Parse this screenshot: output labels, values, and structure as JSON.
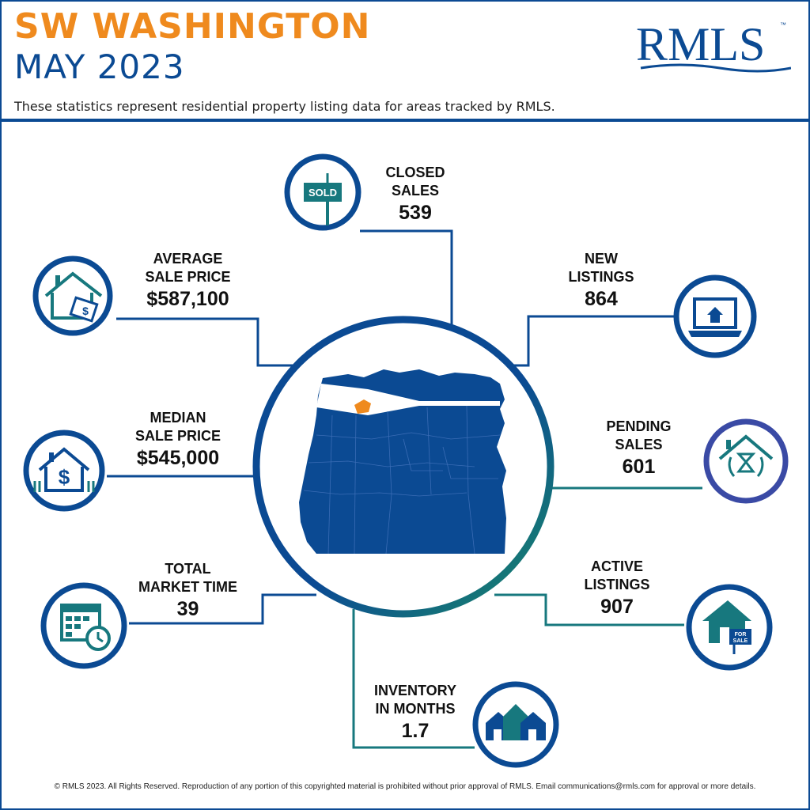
{
  "header": {
    "title_line1": "SW WASHINGTON",
    "title_line2": "MAY 2023",
    "brand": "RMLS",
    "trademark": "™",
    "subtitle": "These statistics represent residential property listing data for areas tracked by RMLS."
  },
  "colors": {
    "brand_blue": "#0b4a93",
    "accent_orange": "#ef8a1e",
    "icon_teal": "#17787e",
    "ring_green": "#1a8a6a",
    "pending_ring": "#3a4aa5"
  },
  "stats": {
    "closed_sales": {
      "label": "CLOSED\nSALES",
      "value": "539",
      "icon": "sold-sign-icon",
      "sign_text": "SOLD"
    },
    "new_listings": {
      "label": "NEW\nLISTINGS",
      "value": "864",
      "icon": "laptop-house-icon"
    },
    "avg_sale_price": {
      "label": "AVERAGE\nSALE PRICE",
      "value": "$587,100",
      "icon": "house-price-tag-icon"
    },
    "median_sale_price": {
      "label": "MEDIAN\nSALE PRICE",
      "value": "$545,000",
      "icon": "house-dollar-icon"
    },
    "pending_sales": {
      "label": "PENDING\nSALES",
      "value": "601",
      "icon": "house-hourglass-icon"
    },
    "total_market_time": {
      "label": "TOTAL\nMARKET TIME",
      "value": "39",
      "icon": "calendar-clock-icon"
    },
    "active_listings": {
      "label": "ACTIVE\nLISTINGS",
      "value": "907",
      "icon": "house-for-sale-icon",
      "sign_text": "FOR\nSALE"
    },
    "inventory_months": {
      "label": "INVENTORY\nIN MONTHS",
      "value": "1.7",
      "icon": "houses-row-icon"
    }
  },
  "map": {
    "icon": "oregon-county-map-icon",
    "highlight_color": "#ef8a1e"
  },
  "footer": "© RMLS 2023. All Rights Reserved. Reproduction of any portion of this copyrighted material is prohibited without prior approval of RMLS. Email communications@rmls.com for approval or more details."
}
